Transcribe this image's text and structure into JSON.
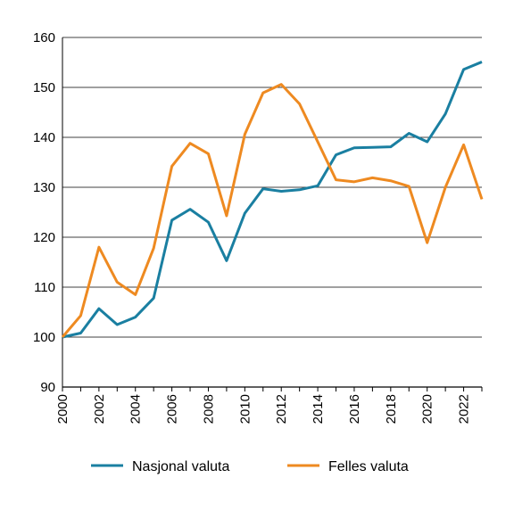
{
  "chart_data": {
    "type": "line",
    "title": "",
    "xlabel": "",
    "ylabel": "",
    "x": [
      2000,
      2001,
      2002,
      2003,
      2004,
      2005,
      2006,
      2007,
      2008,
      2009,
      2010,
      2011,
      2012,
      2013,
      2014,
      2015,
      2016,
      2017,
      2018,
      2019,
      2020,
      2021,
      2022,
      2023
    ],
    "xlim": [
      2000,
      2023
    ],
    "ylim": [
      90,
      160
    ],
    "x_ticks": [
      "2000",
      "2002",
      "2004",
      "2006",
      "2008",
      "2010",
      "2012",
      "2014",
      "2016",
      "2018",
      "2020",
      "2022"
    ],
    "y_ticks": [
      "90",
      "100",
      "110",
      "120",
      "130",
      "140",
      "150",
      "160"
    ],
    "grid": "horizontal",
    "legend_position": "bottom",
    "series": [
      {
        "name": "Nasjonal valuta",
        "color": "#1a7fa1",
        "values": [
          100,
          100.8,
          105.7,
          102.5,
          104.0,
          107.8,
          123.4,
          125.6,
          123.0,
          115.3,
          124.8,
          129.7,
          129.2,
          129.5,
          130.3,
          136.5,
          137.9,
          138.0,
          138.1,
          140.8,
          139.1,
          144.7,
          153.6,
          155.1
        ]
      },
      {
        "name": "Felles valuta",
        "color": "#ee8a21",
        "values": [
          100,
          104.3,
          118.0,
          111.0,
          108.5,
          117.8,
          134.2,
          138.8,
          136.7,
          124.3,
          140.6,
          148.9,
          150.6,
          146.7,
          139.1,
          131.5,
          131.1,
          131.9,
          131.3,
          130.2,
          118.9,
          130.0,
          138.5,
          127.6
        ]
      }
    ]
  }
}
